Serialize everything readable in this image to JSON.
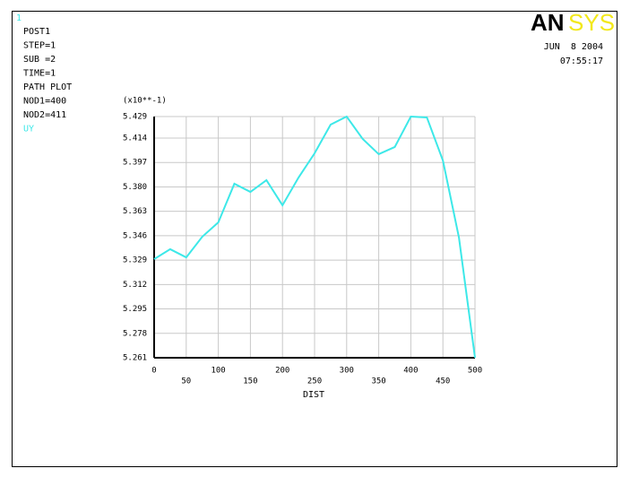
{
  "chart_data": {
    "type": "line",
    "window_number": "1",
    "logo": {
      "left": "AN",
      "right": "SYS"
    },
    "date": "JUN  8 2004",
    "time": "07:55:17",
    "info": [
      "POST1",
      "STEP=1",
      "SUB =2",
      "TIME=1",
      "PATH PLOT",
      "NOD1=400",
      "NOD2=411"
    ],
    "y_multiplier": "(x10**-1)",
    "x_label": "DIST",
    "x": [
      0,
      25,
      50,
      75,
      100,
      125,
      150,
      175,
      200,
      225,
      250,
      275,
      300,
      325,
      350,
      375,
      400,
      425,
      450,
      475,
      500
    ],
    "series": [
      {
        "name": "UY",
        "color": "#3de8e8",
        "values": [
          5.3297,
          5.3366,
          5.3309,
          5.3453,
          5.3553,
          5.3822,
          5.3765,
          5.3847,
          5.3672,
          5.3865,
          5.4034,
          5.4234,
          5.429,
          5.4134,
          5.4028,
          5.4078,
          5.429,
          5.4284,
          5.3984,
          5.3447,
          5.261
        ]
      }
    ],
    "xlim": [
      0,
      500
    ],
    "xticks": [
      0,
      50,
      100,
      150,
      200,
      250,
      300,
      350,
      400,
      450,
      500
    ],
    "ylim": [
      5.261,
      5.429
    ],
    "yticks": [
      5.261,
      5.278,
      5.295,
      5.312,
      5.329,
      5.346,
      5.363,
      {
        "value": 5.38,
        "label": "5.380"
      },
      5.397,
      5.414,
      5.429
    ],
    "grid": true
  }
}
